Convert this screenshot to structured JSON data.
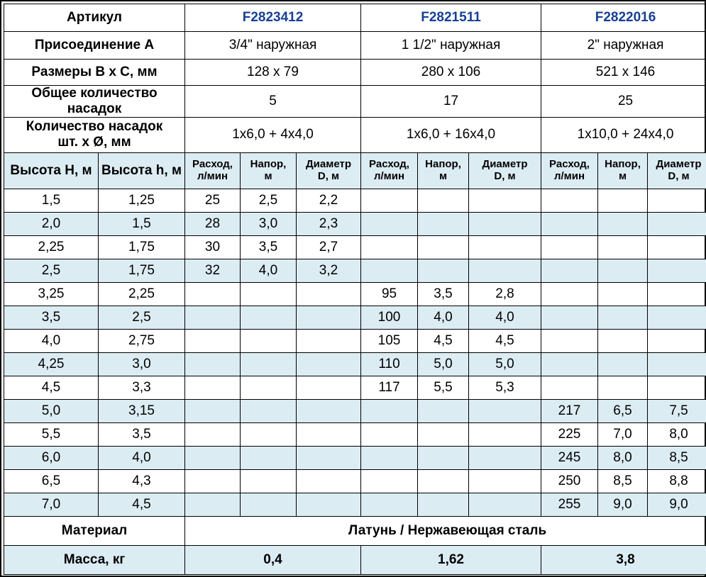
{
  "colors": {
    "stripe": "#dcecf3",
    "article_number": "#173f94",
    "border": "#000000",
    "background": "#ffffff"
  },
  "table": {
    "spec_rows": [
      {
        "label": "Артикул",
        "values": [
          "F2823412",
          "F2821511",
          "F2822016"
        ]
      },
      {
        "label": "Присоединение А",
        "values": [
          "3/4\" наружная",
          "1 1/2\" наружная",
          "2\" наружная"
        ]
      },
      {
        "label": "Размеры В х С, мм",
        "values": [
          "128 х 79",
          "280 х 106",
          "521 х 146"
        ]
      },
      {
        "label": "Общее количество\nнасадок",
        "values": [
          "5",
          "17",
          "25"
        ]
      },
      {
        "label": "Количество насадок\nшт. х Ø, мм",
        "values": [
          "1х6,0 + 4х4,0",
          "1х6,0 + 16х4,0",
          "1х10,0 + 24х4,0"
        ]
      }
    ],
    "header": {
      "height_H": "Высота Н, м",
      "height_h": "Высота h, м",
      "flow": "Расход,\nл/мин",
      "head": "Напор,\nм",
      "diameter": "Диаметр\nD, м"
    },
    "data_rows": [
      [
        "1,5",
        "1,25",
        "25",
        "2,5",
        "2,2",
        "",
        "",
        "",
        "",
        "",
        ""
      ],
      [
        "2,0",
        "1,5",
        "28",
        "3,0",
        "2,3",
        "",
        "",
        "",
        "",
        "",
        ""
      ],
      [
        "2,25",
        "1,75",
        "30",
        "3,5",
        "2,7",
        "",
        "",
        "",
        "",
        "",
        ""
      ],
      [
        "2,5",
        "1,75",
        "32",
        "4,0",
        "3,2",
        "",
        "",
        "",
        "",
        "",
        ""
      ],
      [
        "3,25",
        "2,25",
        "",
        "",
        "",
        "95",
        "3,5",
        "2,8",
        "",
        "",
        ""
      ],
      [
        "3,5",
        "2,5",
        "",
        "",
        "",
        "100",
        "4,0",
        "4,0",
        "",
        "",
        ""
      ],
      [
        "4,0",
        "2,75",
        "",
        "",
        "",
        "105",
        "4,5",
        "4,5",
        "",
        "",
        ""
      ],
      [
        "4,25",
        "3,0",
        "",
        "",
        "",
        "110",
        "5,0",
        "5,0",
        "",
        "",
        ""
      ],
      [
        "4,5",
        "3,3",
        "",
        "",
        "",
        "117",
        "5,5",
        "5,3",
        "",
        "",
        ""
      ],
      [
        "5,0",
        "3,15",
        "",
        "",
        "",
        "",
        "",
        "",
        "217",
        "6,5",
        "7,5"
      ],
      [
        "5,5",
        "3,5",
        "",
        "",
        "",
        "",
        "",
        "",
        "225",
        "7,0",
        "8,0"
      ],
      [
        "6,0",
        "4,0",
        "",
        "",
        "",
        "",
        "",
        "",
        "245",
        "8,0",
        "8,5"
      ],
      [
        "6,5",
        "4,3",
        "",
        "",
        "",
        "",
        "",
        "",
        "250",
        "8,5",
        "8,8"
      ],
      [
        "7,0",
        "4,5",
        "",
        "",
        "",
        "",
        "",
        "",
        "255",
        "9,0",
        "9,0"
      ]
    ],
    "material": {
      "label": "Материал",
      "value": "Латунь / Нержавеющая сталь"
    },
    "mass": {
      "label": "Масса, кг",
      "values": [
        "0,4",
        "1,62",
        "3,8"
      ]
    }
  }
}
